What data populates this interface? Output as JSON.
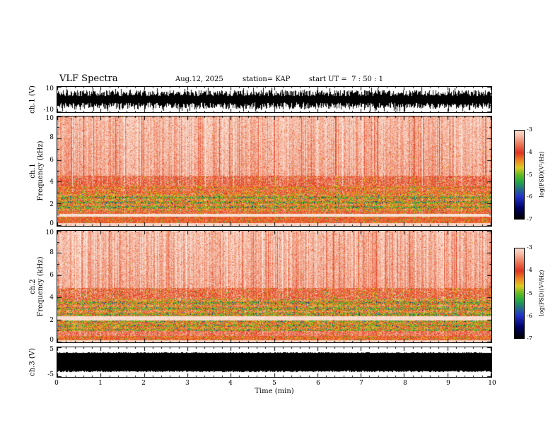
{
  "header": {
    "title": "VLF Spectra",
    "date": "Aug.12, 2025",
    "station": "station= KAP",
    "start_ut": "start UT =  7 : 50 : 1"
  },
  "chart_data": {
    "type": "heatmap",
    "title": "VLF Spectra",
    "annotations": {
      "date": "Aug.12, 2025",
      "station": "KAP",
      "start_ut_hms": "7 : 50 : 1"
    },
    "x": {
      "label": "Time (min)",
      "min": 0,
      "max": 10,
      "ticks": [
        0,
        1,
        2,
        3,
        4,
        5,
        6,
        7,
        8,
        9,
        10
      ],
      "minor_per_major": 5
    },
    "colorbar": {
      "label": "log(PSD)(V²/Hz)",
      "max": -3,
      "min": -7,
      "ticks": [
        -3,
        -4,
        -5,
        -6,
        -7
      ],
      "stops": [
        [
          0.0,
          "#000000"
        ],
        [
          0.12,
          "#000066"
        ],
        [
          0.25,
          "#2233cc"
        ],
        [
          0.42,
          "#22aa44"
        ],
        [
          0.5,
          "#66bb22"
        ],
        [
          0.58,
          "#ddcc22"
        ],
        [
          0.66,
          "#ee8822"
        ],
        [
          0.75,
          "#e03422"
        ],
        [
          0.85,
          "#ec7a5a"
        ],
        [
          0.93,
          "#f4b49e"
        ],
        [
          1.0,
          "#f9dccf"
        ],
        [
          1.18,
          "#ffffff"
        ]
      ]
    },
    "panels": [
      {
        "kind": "waveform",
        "name": "ch1_waveform",
        "ylabel": "ch.1 (V)",
        "ymin": -10,
        "ymax": 10,
        "yticks": [
          10,
          -10
        ],
        "ytick_major": 10,
        "ytick_minor": 5,
        "envelope_v": 7,
        "style": "dense-noise",
        "color": "#000000",
        "description": "broadband noise waveform, ragged envelope about ±7 V with spikes to ±9 V"
      },
      {
        "kind": "spectrogram",
        "name": "ch1_spectrogram",
        "ylabel_ch": "ch.1",
        "ylabel_axis": "Frequency (kHz)",
        "ymin": 0,
        "ymax": 10,
        "yticks": [
          10,
          8,
          6,
          4,
          2,
          0
        ],
        "ytick_major": 2,
        "ytick_minor": 1,
        "description": "pink/red background above 4.6 kHz with vertical streaks; intense red-yellow-green activity 1.3-3.6 kHz; white quiet band near 0.9 kHz; red band below 0.8 kHz",
        "bands": [
          {
            "f0": 4.6,
            "f1": 10,
            "base": -3.35,
            "pix": 0.28,
            "col": 0.5,
            "spike": 0.02,
            "grad": 0.15
          },
          {
            "f0": 3.6,
            "f1": 4.6,
            "base": -3.7,
            "pix": 0.45,
            "col": 0.5,
            "spike": 0.06
          },
          {
            "f0": 2.9,
            "f1": 3.6,
            "base": -3.95,
            "pix": 0.6,
            "col": 0.4,
            "spike": 0.1,
            "stripe_amp": 0.2,
            "stripe_freq": 14
          },
          {
            "f0": 1.35,
            "f1": 2.9,
            "base": -4.35,
            "pix": 0.85,
            "col": 0.35,
            "spike": 0.15,
            "stripe_amp": 0.4,
            "stripe_freq": 14
          },
          {
            "f0": 1.05,
            "f1": 1.35,
            "base": -3.9,
            "pix": 0.55,
            "col": 0.3,
            "spike": 0.08
          },
          {
            "f0": 0.8,
            "f1": 1.05,
            "base": -2.9,
            "pix": 0.15,
            "col": 0.1,
            "spike": 0
          },
          {
            "f0": 0.2,
            "f1": 0.8,
            "base": -4.0,
            "pix": 0.45,
            "col": 0.3,
            "spike": 0.1
          },
          {
            "f0": 0,
            "f1": 0.2,
            "base": -3.0,
            "pix": 0.2,
            "col": 0.1,
            "spike": 0
          }
        ]
      },
      {
        "kind": "spectrogram",
        "name": "ch2_spectrogram",
        "ylabel_ch": "ch.2",
        "ylabel_axis": "Frequency (kHz)",
        "ymin": 0,
        "ymax": 10,
        "yticks": [
          10,
          8,
          6,
          4,
          2,
          0
        ],
        "ytick_major": 2,
        "ytick_minor": 1,
        "description": "pink/red background above 4.9 kHz; dense yellow-green activity 1.0-3.9 kHz; white quiet band near 2 kHz; red band below 1 kHz",
        "bands": [
          {
            "f0": 4.9,
            "f1": 10,
            "base": -3.35,
            "pix": 0.28,
            "col": 0.5,
            "spike": 0.02,
            "grad": 0.15
          },
          {
            "f0": 3.9,
            "f1": 4.9,
            "base": -3.75,
            "pix": 0.55,
            "col": 0.45,
            "spike": 0.08
          },
          {
            "f0": 2.3,
            "f1": 3.9,
            "base": -4.3,
            "pix": 0.9,
            "col": 0.35,
            "spike": 0.15,
            "stripe_amp": 0.35,
            "stripe_freq": 12
          },
          {
            "f0": 1.95,
            "f1": 2.3,
            "base": -2.95,
            "pix": 0.18,
            "col": 0.1,
            "spike": 0
          },
          {
            "f0": 1.0,
            "f1": 1.95,
            "base": -4.35,
            "pix": 0.8,
            "col": 0.3,
            "spike": 0.15,
            "stripe_amp": 0.3,
            "stripe_freq": 16
          },
          {
            "f0": 0.55,
            "f1": 1.0,
            "base": -3.6,
            "pix": 0.4,
            "col": 0.2,
            "spike": 0.06
          },
          {
            "f0": 0.15,
            "f1": 0.55,
            "base": -4.05,
            "pix": 0.5,
            "col": 0.25,
            "spike": 0.1
          },
          {
            "f0": 0,
            "f1": 0.15,
            "base": -3.0,
            "pix": 0.2,
            "col": 0.1,
            "spike": 0
          }
        ]
      },
      {
        "kind": "waveform",
        "name": "ch3_waveform",
        "ylabel": "ch.3 (V)",
        "ymin": -5,
        "ymax": 5,
        "yticks": [
          5,
          -5
        ],
        "ytick_major": 5,
        "ytick_minor": 2.5,
        "envelope_v": 3.2,
        "style": "saturated-band",
        "color": "#000000",
        "description": "saturated constant-amplitude signal, solid black band about ±3.2 V for full 10 min"
      }
    ]
  }
}
